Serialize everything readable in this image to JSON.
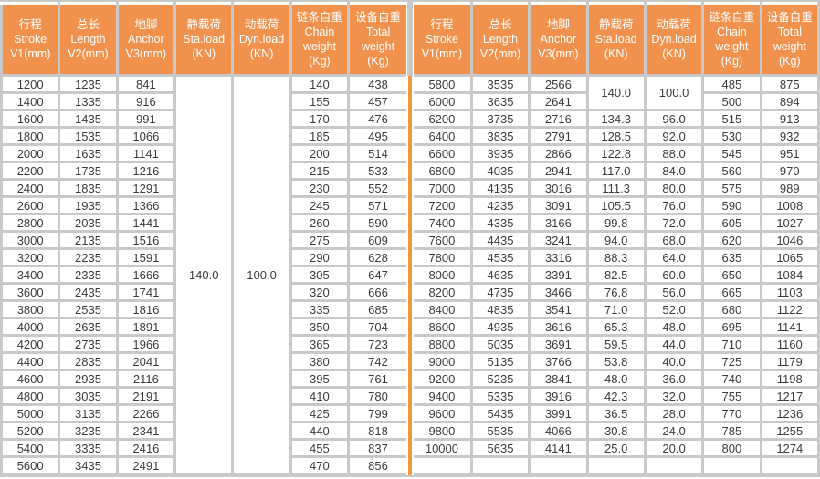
{
  "table": {
    "colors": {
      "header_orange": "#F0924D",
      "divider_orange": "#F2953E",
      "grid_gray": "#C9C9C9",
      "body_text": "#3B3B3B",
      "header_text": "#FFFFFF"
    },
    "header": {
      "columns": [
        {
          "key": "stroke",
          "lines": [
            "行程",
            "Stroke",
            "V1(mm)"
          ]
        },
        {
          "key": "length",
          "lines": [
            "总长",
            "Length",
            "V2(mm)"
          ]
        },
        {
          "key": "anchor",
          "lines": [
            "地脚",
            "Anchor",
            "V3(mm)"
          ]
        },
        {
          "key": "sta-load",
          "lines": [
            "静载荷",
            "Sta.load",
            "(KN)"
          ]
        },
        {
          "key": "dyn-load",
          "lines": [
            "动载荷",
            "Dyn.load",
            "(KN)"
          ]
        },
        {
          "key": "chain-weight",
          "lines": [
            "链条自重",
            "Chain",
            "weight",
            "(Kg)"
          ]
        },
        {
          "key": "total-weight",
          "lines": [
            "设备自重",
            "Total",
            "weight",
            "(Kg)"
          ]
        }
      ]
    },
    "left": {
      "merged": {
        "sta": "140.0",
        "dyn": "100.0"
      },
      "rows": [
        [
          "1200",
          "1235",
          "841",
          "140",
          "438"
        ],
        [
          "1400",
          "1335",
          "916",
          "155",
          "457"
        ],
        [
          "1600",
          "1435",
          "991",
          "170",
          "476"
        ],
        [
          "1800",
          "1535",
          "1066",
          "185",
          "495"
        ],
        [
          "2000",
          "1635",
          "1141",
          "200",
          "514"
        ],
        [
          "2200",
          "1735",
          "1216",
          "215",
          "533"
        ],
        [
          "2400",
          "1835",
          "1291",
          "230",
          "552"
        ],
        [
          "2600",
          "1935",
          "1366",
          "245",
          "571"
        ],
        [
          "2800",
          "2035",
          "1441",
          "260",
          "590"
        ],
        [
          "3000",
          "2135",
          "1516",
          "275",
          "609"
        ],
        [
          "3200",
          "2235",
          "1591",
          "290",
          "628"
        ],
        [
          "3400",
          "2335",
          "1666",
          "305",
          "647"
        ],
        [
          "3600",
          "2435",
          "1741",
          "320",
          "666"
        ],
        [
          "3800",
          "2535",
          "1816",
          "335",
          "685"
        ],
        [
          "4000",
          "2635",
          "1891",
          "350",
          "704"
        ],
        [
          "4200",
          "2735",
          "1966",
          "365",
          "723"
        ],
        [
          "4400",
          "2835",
          "2041",
          "380",
          "742"
        ],
        [
          "4600",
          "2935",
          "2116",
          "395",
          "761"
        ],
        [
          "4800",
          "3035",
          "2191",
          "410",
          "780"
        ],
        [
          "5000",
          "3135",
          "2266",
          "425",
          "799"
        ],
        [
          "5200",
          "3235",
          "2341",
          "440",
          "818"
        ],
        [
          "5400",
          "3335",
          "2416",
          "455",
          "837"
        ],
        [
          "5600",
          "3435",
          "2491",
          "470",
          "856"
        ]
      ]
    },
    "right": {
      "merged": {
        "sta": "140.0",
        "dyn": "100.0"
      },
      "rows_merged": [
        [
          "5800",
          "3535",
          "2566",
          "485",
          "875"
        ],
        [
          "6000",
          "3635",
          "2641",
          "500",
          "894"
        ]
      ],
      "rows_full": [
        [
          "6200",
          "3735",
          "2716",
          "134.3",
          "96.0",
          "515",
          "913"
        ],
        [
          "6400",
          "3835",
          "2791",
          "128.5",
          "92.0",
          "530",
          "932"
        ],
        [
          "6600",
          "3935",
          "2866",
          "122.8",
          "88.0",
          "545",
          "951"
        ],
        [
          "6800",
          "4035",
          "2941",
          "117.0",
          "84.0",
          "560",
          "970"
        ],
        [
          "7000",
          "4135",
          "3016",
          "111.3",
          "80.0",
          "575",
          "989"
        ],
        [
          "7200",
          "4235",
          "3091",
          "105.5",
          "76.0",
          "590",
          "1008"
        ],
        [
          "7400",
          "4335",
          "3166",
          "99.8",
          "72.0",
          "605",
          "1027"
        ],
        [
          "7600",
          "4435",
          "3241",
          "94.0",
          "68.0",
          "620",
          "1046"
        ],
        [
          "7800",
          "4535",
          "3316",
          "88.3",
          "64.0",
          "635",
          "1065"
        ],
        [
          "8000",
          "4635",
          "3391",
          "82.5",
          "60.0",
          "650",
          "1084"
        ],
        [
          "8200",
          "4735",
          "3466",
          "76.8",
          "56.0",
          "665",
          "1103"
        ],
        [
          "8400",
          "4835",
          "3541",
          "71.0",
          "52.0",
          "680",
          "1122"
        ],
        [
          "8600",
          "4935",
          "3616",
          "65.3",
          "48.0",
          "695",
          "1141"
        ],
        [
          "8800",
          "5035",
          "3691",
          "59.5",
          "44.0",
          "710",
          "1160"
        ],
        [
          "9000",
          "5135",
          "3766",
          "53.8",
          "40.0",
          "725",
          "1179"
        ],
        [
          "9200",
          "5235",
          "3841",
          "48.0",
          "36.0",
          "740",
          "1198"
        ],
        [
          "9400",
          "5335",
          "3916",
          "42.3",
          "32.0",
          "755",
          "1217"
        ],
        [
          "9600",
          "5435",
          "3991",
          "36.5",
          "28.0",
          "770",
          "1236"
        ],
        [
          "9800",
          "5535",
          "4066",
          "30.8",
          "24.0",
          "785",
          "1255"
        ],
        [
          "10000",
          "5635",
          "4141",
          "25.0",
          "20.0",
          "800",
          "1274"
        ]
      ],
      "trailing_empty_row": true
    }
  }
}
